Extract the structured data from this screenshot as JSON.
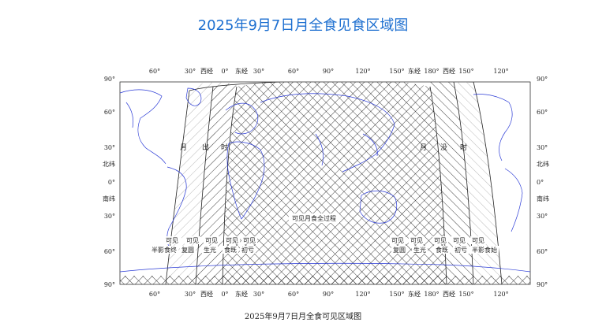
{
  "title": "2025年9月7日月全食见食区域图",
  "caption": "2025年9月7日月全食可见区域图",
  "colors": {
    "title": "#1d6fd0",
    "coast": "#2b3bd6",
    "hatch": "#111111"
  },
  "top_axis": [
    "60°",
    "30°",
    "西经",
    "0°",
    "东经",
    "30°",
    "60°",
    "90°",
    "120°",
    "150°",
    "东经",
    "180°",
    "西经",
    "150°",
    "120°"
  ],
  "bottom_axis": [
    "60°",
    "30°",
    "西经",
    "0°",
    "东经",
    "30°",
    "60°",
    "90°",
    "120°",
    "150°",
    "东经",
    "180°",
    "西经",
    "150°",
    "120°"
  ],
  "left_axis": [
    "90°",
    "60°",
    "30°",
    "北纬",
    "0°",
    "南纬",
    "30°",
    "60°",
    "90°"
  ],
  "right_axis": [
    "90°",
    "60°",
    "30°",
    "北纬",
    "0°",
    "南纬",
    "30°",
    "60°",
    "90°"
  ],
  "labels": {
    "moonset": [
      "月",
      "出",
      "时"
    ],
    "moonrise": [
      "月",
      "没",
      "时"
    ],
    "total_visible": "可见月食全过程",
    "left_bottom": [
      {
        "top": "可见",
        "bottom": "半影食终"
      },
      {
        "top": "可见",
        "bottom": "复圆"
      },
      {
        "top": "可见",
        "bottom": "生光"
      },
      {
        "top": "可见",
        "bottom": "食既"
      },
      {
        "top": "可见",
        "bottom": "初亏"
      }
    ],
    "right_bottom": [
      {
        "top": "可见",
        "bottom": "复圆"
      },
      {
        "top": "可见",
        "bottom": "生光"
      },
      {
        "top": "可见",
        "bottom": "食既"
      },
      {
        "top": "可见",
        "bottom": "初亏"
      },
      {
        "top": "可见",
        "bottom": "半影食始"
      }
    ]
  }
}
